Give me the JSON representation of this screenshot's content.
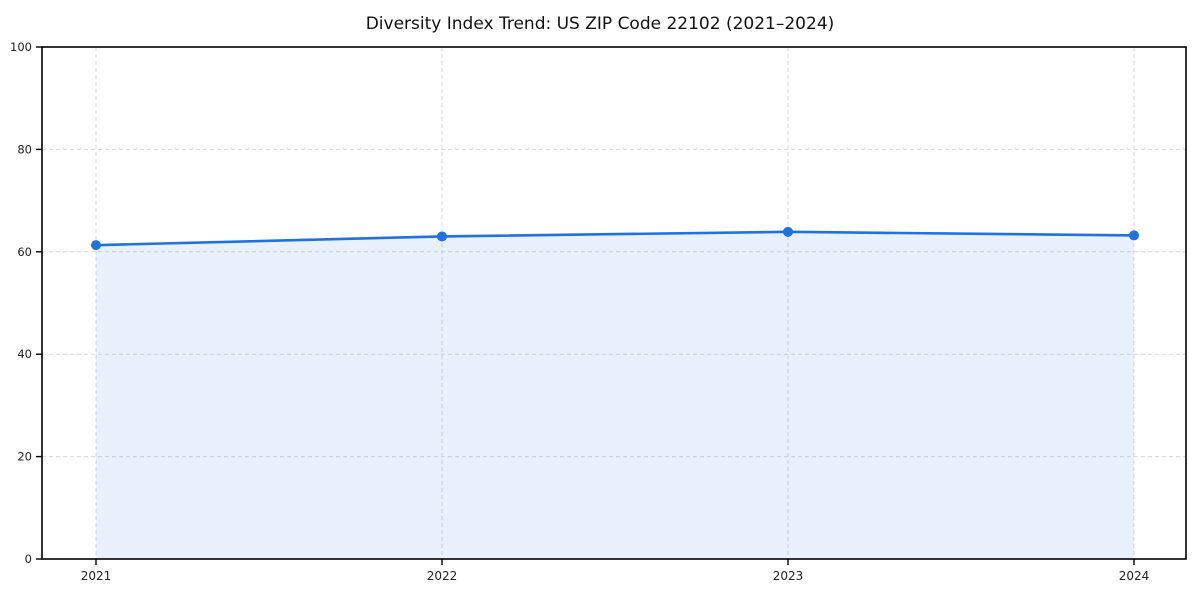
{
  "title": "Diversity Index Trend: US ZIP Code 22102 (2021–2024)",
  "chart_data": {
    "type": "area",
    "title": "Diversity Index Trend: US ZIP Code 22102 (2021–2024)",
    "categories": [
      "2021",
      "2022",
      "2023",
      "2024"
    ],
    "series": [
      {
        "name": "Diversity Index",
        "values": [
          61.3,
          63.0,
          63.9,
          63.2
        ]
      }
    ],
    "xlabel": "",
    "ylabel": "",
    "ylim": [
      0,
      100
    ],
    "yticks": [
      0,
      20,
      40,
      60,
      80,
      100
    ],
    "grid": "dashed-both-axes",
    "legend": "none",
    "colors": {
      "line": "#2171de",
      "marker": "#2171de",
      "fill": "rgba(33, 113, 222, 0.10)",
      "grid": "#d7d7d7",
      "axis": "#000000",
      "tick_label": "#222222",
      "title": "#111111",
      "background": "#ffffff"
    }
  }
}
